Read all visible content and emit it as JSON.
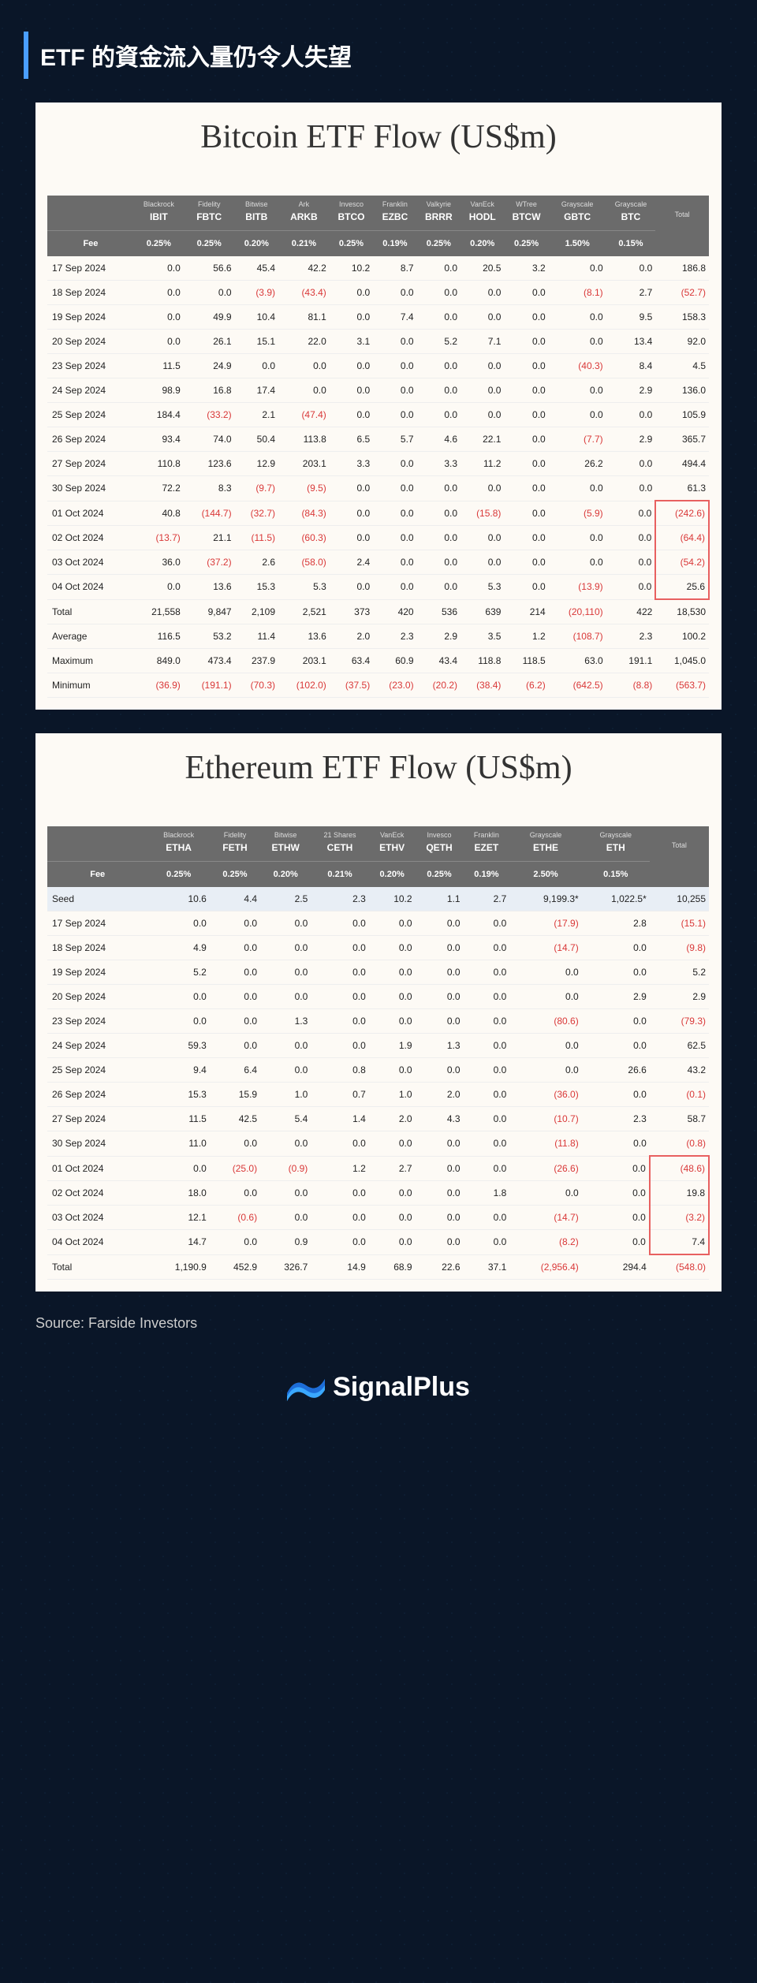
{
  "page_title": "ETF 的資金流入量仍令人失望",
  "source_text": "Source: Farside Investors",
  "brand_name": "SignalPlus",
  "btc": {
    "title": "Bitcoin ETF Flow (US$m)",
    "providers": [
      "Blackrock",
      "Fidelity",
      "Bitwise",
      "Ark",
      "Invesco",
      "Franklin",
      "Valkyrie",
      "VanEck",
      "WTree",
      "Grayscale",
      "Grayscale"
    ],
    "tickers": [
      "IBIT",
      "FBTC",
      "BITB",
      "ARKB",
      "BTCO",
      "EZBC",
      "BRRR",
      "HODL",
      "BTCW",
      "GBTC",
      "BTC"
    ],
    "total_label": "Total",
    "fee_label": "Fee",
    "fees": [
      "0.25%",
      "0.25%",
      "0.20%",
      "0.21%",
      "0.25%",
      "0.19%",
      "0.25%",
      "0.20%",
      "0.25%",
      "1.50%",
      "0.15%"
    ],
    "highlight_rows": [
      "01 Oct 2024",
      "02 Oct 2024",
      "03 Oct 2024",
      "04 Oct 2024"
    ],
    "rows": [
      {
        "label": "17 Sep 2024",
        "v": [
          "0.0",
          "56.6",
          "45.4",
          "42.2",
          "10.2",
          "8.7",
          "0.0",
          "20.5",
          "3.2",
          "0.0",
          "0.0"
        ],
        "t": "186.8"
      },
      {
        "label": "18 Sep 2024",
        "v": [
          "0.0",
          "0.0",
          "(3.9)",
          "(43.4)",
          "0.0",
          "0.0",
          "0.0",
          "0.0",
          "0.0",
          "(8.1)",
          "2.7"
        ],
        "t": "(52.7)"
      },
      {
        "label": "19 Sep 2024",
        "v": [
          "0.0",
          "49.9",
          "10.4",
          "81.1",
          "0.0",
          "7.4",
          "0.0",
          "0.0",
          "0.0",
          "0.0",
          "9.5"
        ],
        "t": "158.3"
      },
      {
        "label": "20 Sep 2024",
        "v": [
          "0.0",
          "26.1",
          "15.1",
          "22.0",
          "3.1",
          "0.0",
          "5.2",
          "7.1",
          "0.0",
          "0.0",
          "13.4"
        ],
        "t": "92.0"
      },
      {
        "label": "23 Sep 2024",
        "v": [
          "11.5",
          "24.9",
          "0.0",
          "0.0",
          "0.0",
          "0.0",
          "0.0",
          "0.0",
          "0.0",
          "(40.3)",
          "8.4"
        ],
        "t": "4.5"
      },
      {
        "label": "24 Sep 2024",
        "v": [
          "98.9",
          "16.8",
          "17.4",
          "0.0",
          "0.0",
          "0.0",
          "0.0",
          "0.0",
          "0.0",
          "0.0",
          "2.9"
        ],
        "t": "136.0"
      },
      {
        "label": "25 Sep 2024",
        "v": [
          "184.4",
          "(33.2)",
          "2.1",
          "(47.4)",
          "0.0",
          "0.0",
          "0.0",
          "0.0",
          "0.0",
          "0.0",
          "0.0"
        ],
        "t": "105.9"
      },
      {
        "label": "26 Sep 2024",
        "v": [
          "93.4",
          "74.0",
          "50.4",
          "113.8",
          "6.5",
          "5.7",
          "4.6",
          "22.1",
          "0.0",
          "(7.7)",
          "2.9"
        ],
        "t": "365.7"
      },
      {
        "label": "27 Sep 2024",
        "v": [
          "110.8",
          "123.6",
          "12.9",
          "203.1",
          "3.3",
          "0.0",
          "3.3",
          "11.2",
          "0.0",
          "26.2",
          "0.0"
        ],
        "t": "494.4"
      },
      {
        "label": "30 Sep 2024",
        "v": [
          "72.2",
          "8.3",
          "(9.7)",
          "(9.5)",
          "0.0",
          "0.0",
          "0.0",
          "0.0",
          "0.0",
          "0.0",
          "0.0"
        ],
        "t": "61.3"
      },
      {
        "label": "01 Oct 2024",
        "v": [
          "40.8",
          "(144.7)",
          "(32.7)",
          "(84.3)",
          "0.0",
          "0.0",
          "0.0",
          "(15.8)",
          "0.0",
          "(5.9)",
          "0.0"
        ],
        "t": "(242.6)"
      },
      {
        "label": "02 Oct 2024",
        "v": [
          "(13.7)",
          "21.1",
          "(11.5)",
          "(60.3)",
          "0.0",
          "0.0",
          "0.0",
          "0.0",
          "0.0",
          "0.0",
          "0.0"
        ],
        "t": "(64.4)"
      },
      {
        "label": "03 Oct 2024",
        "v": [
          "36.0",
          "(37.2)",
          "2.6",
          "(58.0)",
          "2.4",
          "0.0",
          "0.0",
          "0.0",
          "0.0",
          "0.0",
          "0.0"
        ],
        "t": "(54.2)"
      },
      {
        "label": "04 Oct 2024",
        "v": [
          "0.0",
          "13.6",
          "15.3",
          "5.3",
          "0.0",
          "0.0",
          "0.0",
          "5.3",
          "0.0",
          "(13.9)",
          "0.0"
        ],
        "t": "25.6"
      }
    ],
    "footer": [
      {
        "label": "Total",
        "v": [
          "21,558",
          "9,847",
          "2,109",
          "2,521",
          "373",
          "420",
          "536",
          "639",
          "214",
          "(20,110)",
          "422"
        ],
        "t": "18,530"
      },
      {
        "label": "Average",
        "v": [
          "116.5",
          "53.2",
          "11.4",
          "13.6",
          "2.0",
          "2.3",
          "2.9",
          "3.5",
          "1.2",
          "(108.7)",
          "2.3"
        ],
        "t": "100.2"
      },
      {
        "label": "Maximum",
        "v": [
          "849.0",
          "473.4",
          "237.9",
          "203.1",
          "63.4",
          "60.9",
          "43.4",
          "118.8",
          "118.5",
          "63.0",
          "191.1"
        ],
        "t": "1,045.0"
      },
      {
        "label": "Minimum",
        "v": [
          "(36.9)",
          "(191.1)",
          "(70.3)",
          "(102.0)",
          "(37.5)",
          "(23.0)",
          "(20.2)",
          "(38.4)",
          "(6.2)",
          "(642.5)",
          "(8.8)"
        ],
        "t": "(563.7)"
      }
    ]
  },
  "eth": {
    "title": "Ethereum ETF Flow (US$m)",
    "providers": [
      "Blackrock",
      "Fidelity",
      "Bitwise",
      "21 Shares",
      "VanEck",
      "Invesco",
      "Franklin",
      "Grayscale",
      "Grayscale"
    ],
    "tickers": [
      "ETHA",
      "FETH",
      "ETHW",
      "CETH",
      "ETHV",
      "QETH",
      "EZET",
      "ETHE",
      "ETH"
    ],
    "total_label": "Total",
    "fee_label": "Fee",
    "fees": [
      "0.25%",
      "0.25%",
      "0.20%",
      "0.21%",
      "0.20%",
      "0.25%",
      "0.19%",
      "2.50%",
      "0.15%"
    ],
    "highlight_rows": [
      "01 Oct 2024",
      "02 Oct 2024",
      "03 Oct 2024",
      "04 Oct 2024"
    ],
    "seed": {
      "label": "Seed",
      "v": [
        "10.6",
        "4.4",
        "2.5",
        "2.3",
        "10.2",
        "1.1",
        "2.7",
        "9,199.3*",
        "1,022.5*"
      ],
      "t": "10,255"
    },
    "rows": [
      {
        "label": "17 Sep 2024",
        "v": [
          "0.0",
          "0.0",
          "0.0",
          "0.0",
          "0.0",
          "0.0",
          "0.0",
          "(17.9)",
          "2.8"
        ],
        "t": "(15.1)"
      },
      {
        "label": "18 Sep 2024",
        "v": [
          "4.9",
          "0.0",
          "0.0",
          "0.0",
          "0.0",
          "0.0",
          "0.0",
          "(14.7)",
          "0.0"
        ],
        "t": "(9.8)"
      },
      {
        "label": "19 Sep 2024",
        "v": [
          "5.2",
          "0.0",
          "0.0",
          "0.0",
          "0.0",
          "0.0",
          "0.0",
          "0.0",
          "0.0"
        ],
        "t": "5.2"
      },
      {
        "label": "20 Sep 2024",
        "v": [
          "0.0",
          "0.0",
          "0.0",
          "0.0",
          "0.0",
          "0.0",
          "0.0",
          "0.0",
          "2.9"
        ],
        "t": "2.9"
      },
      {
        "label": "23 Sep 2024",
        "v": [
          "0.0",
          "0.0",
          "1.3",
          "0.0",
          "0.0",
          "0.0",
          "0.0",
          "(80.6)",
          "0.0"
        ],
        "t": "(79.3)"
      },
      {
        "label": "24 Sep 2024",
        "v": [
          "59.3",
          "0.0",
          "0.0",
          "0.0",
          "1.9",
          "1.3",
          "0.0",
          "0.0",
          "0.0"
        ],
        "t": "62.5"
      },
      {
        "label": "25 Sep 2024",
        "v": [
          "9.4",
          "6.4",
          "0.0",
          "0.8",
          "0.0",
          "0.0",
          "0.0",
          "0.0",
          "26.6"
        ],
        "t": "43.2"
      },
      {
        "label": "26 Sep 2024",
        "v": [
          "15.3",
          "15.9",
          "1.0",
          "0.7",
          "1.0",
          "2.0",
          "0.0",
          "(36.0)",
          "0.0"
        ],
        "t": "(0.1)"
      },
      {
        "label": "27 Sep 2024",
        "v": [
          "11.5",
          "42.5",
          "5.4",
          "1.4",
          "2.0",
          "4.3",
          "0.0",
          "(10.7)",
          "2.3"
        ],
        "t": "58.7"
      },
      {
        "label": "30 Sep 2024",
        "v": [
          "11.0",
          "0.0",
          "0.0",
          "0.0",
          "0.0",
          "0.0",
          "0.0",
          "(11.8)",
          "0.0"
        ],
        "t": "(0.8)"
      },
      {
        "label": "01 Oct 2024",
        "v": [
          "0.0",
          "(25.0)",
          "(0.9)",
          "1.2",
          "2.7",
          "0.0",
          "0.0",
          "(26.6)",
          "0.0"
        ],
        "t": "(48.6)"
      },
      {
        "label": "02 Oct 2024",
        "v": [
          "18.0",
          "0.0",
          "0.0",
          "0.0",
          "0.0",
          "0.0",
          "1.8",
          "0.0",
          "0.0"
        ],
        "t": "19.8"
      },
      {
        "label": "03 Oct 2024",
        "v": [
          "12.1",
          "(0.6)",
          "0.0",
          "0.0",
          "0.0",
          "0.0",
          "0.0",
          "(14.7)",
          "0.0"
        ],
        "t": "(3.2)"
      },
      {
        "label": "04 Oct 2024",
        "v": [
          "14.7",
          "0.0",
          "0.9",
          "0.0",
          "0.0",
          "0.0",
          "0.0",
          "(8.2)",
          "0.0"
        ],
        "t": "7.4"
      }
    ],
    "footer": [
      {
        "label": "Total",
        "v": [
          "1,190.9",
          "452.9",
          "326.7",
          "14.9",
          "68.9",
          "22.6",
          "37.1",
          "(2,956.4)",
          "294.4"
        ],
        "t": "(548.0)"
      }
    ]
  }
}
